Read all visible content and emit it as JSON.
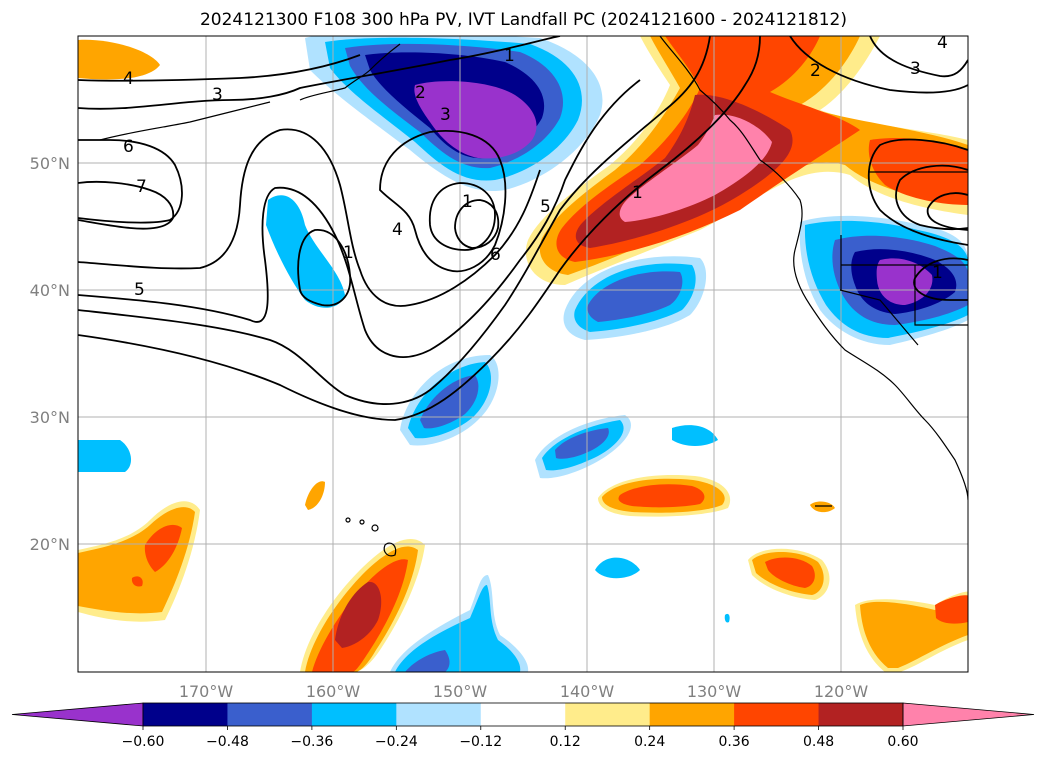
{
  "title": "2024121300 F108 300 hPa PV, IVT Landfall PC (2024121600 - 2024121812)",
  "longitude_labels": [
    "170°W",
    "160°W",
    "150°W",
    "140°W",
    "130°W",
    "120°W"
  ],
  "latitude_labels": [
    "50°N",
    "40°N",
    "30°N",
    "20°N"
  ],
  "colorbar": {
    "tick_labels": [
      "−0.60",
      "−0.48",
      "−0.36",
      "−0.24",
      "−0.12",
      "0.12",
      "0.24",
      "0.36",
      "0.48",
      "0.60"
    ],
    "colors": [
      "#9932cc",
      "#00008b",
      "#3a5fcd",
      "#00bfff",
      "#b0e2ff",
      "#ffffff",
      "#ffec8b",
      "#ffa500",
      "#ff4500",
      "#b22222",
      "#ff82ab"
    ]
  },
  "contour_labels": [
    "1",
    "2",
    "3",
    "4",
    "4",
    "3",
    "2",
    "3",
    "6",
    "7",
    "5",
    "1",
    "4",
    "1",
    "6",
    "5",
    "1",
    "1"
  ],
  "map_colors": {
    "coastline": "#000000",
    "grid": "#b0b0b0",
    "contour": "#000000"
  }
}
